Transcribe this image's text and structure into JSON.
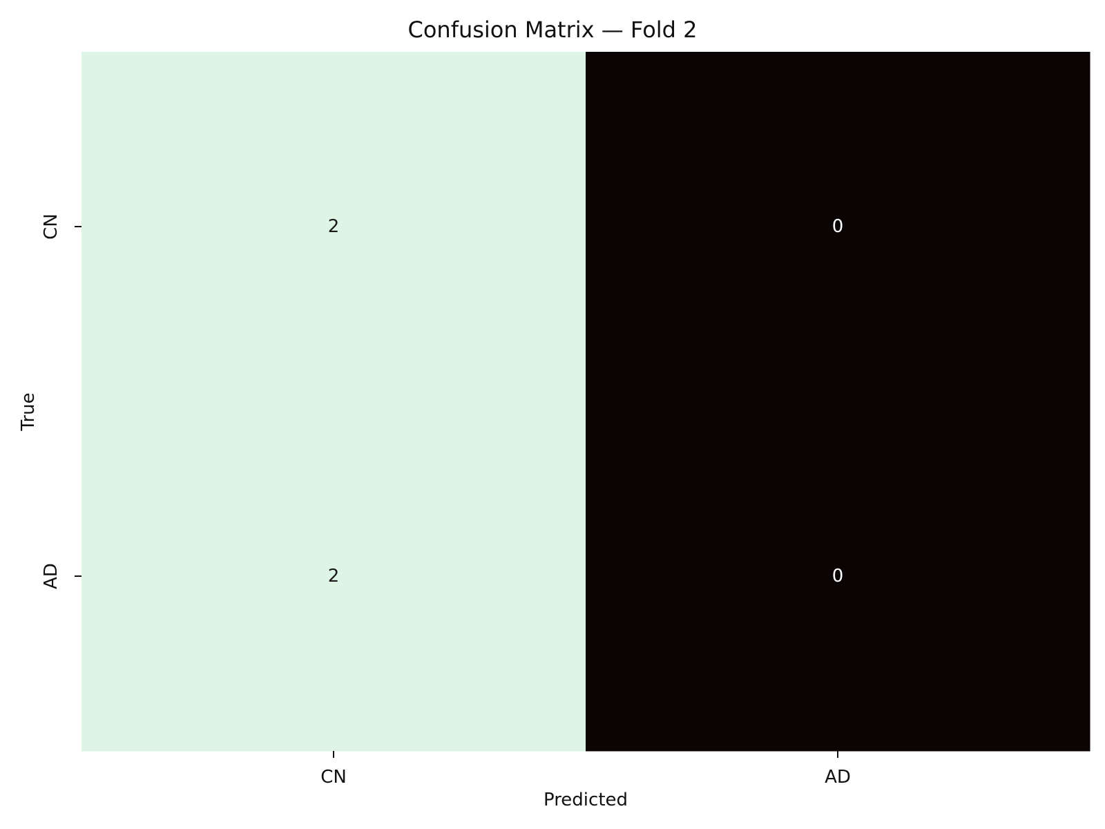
{
  "chart_data": {
    "type": "heatmap",
    "title": "Confusion Matrix — Fold 2",
    "xlabel": "Predicted",
    "ylabel": "True",
    "x_categories": [
      "CN",
      "AD"
    ],
    "y_categories": [
      "CN",
      "AD"
    ],
    "values": [
      [
        2,
        0
      ],
      [
        2,
        0
      ]
    ],
    "color_scale": {
      "min_color": "#0a0405",
      "max_color": "#def5e5"
    },
    "annotation_colors": {
      "on_light": "#1a1a1a",
      "on_dark": "#ffffff"
    },
    "colorbar": false,
    "grid": false
  }
}
